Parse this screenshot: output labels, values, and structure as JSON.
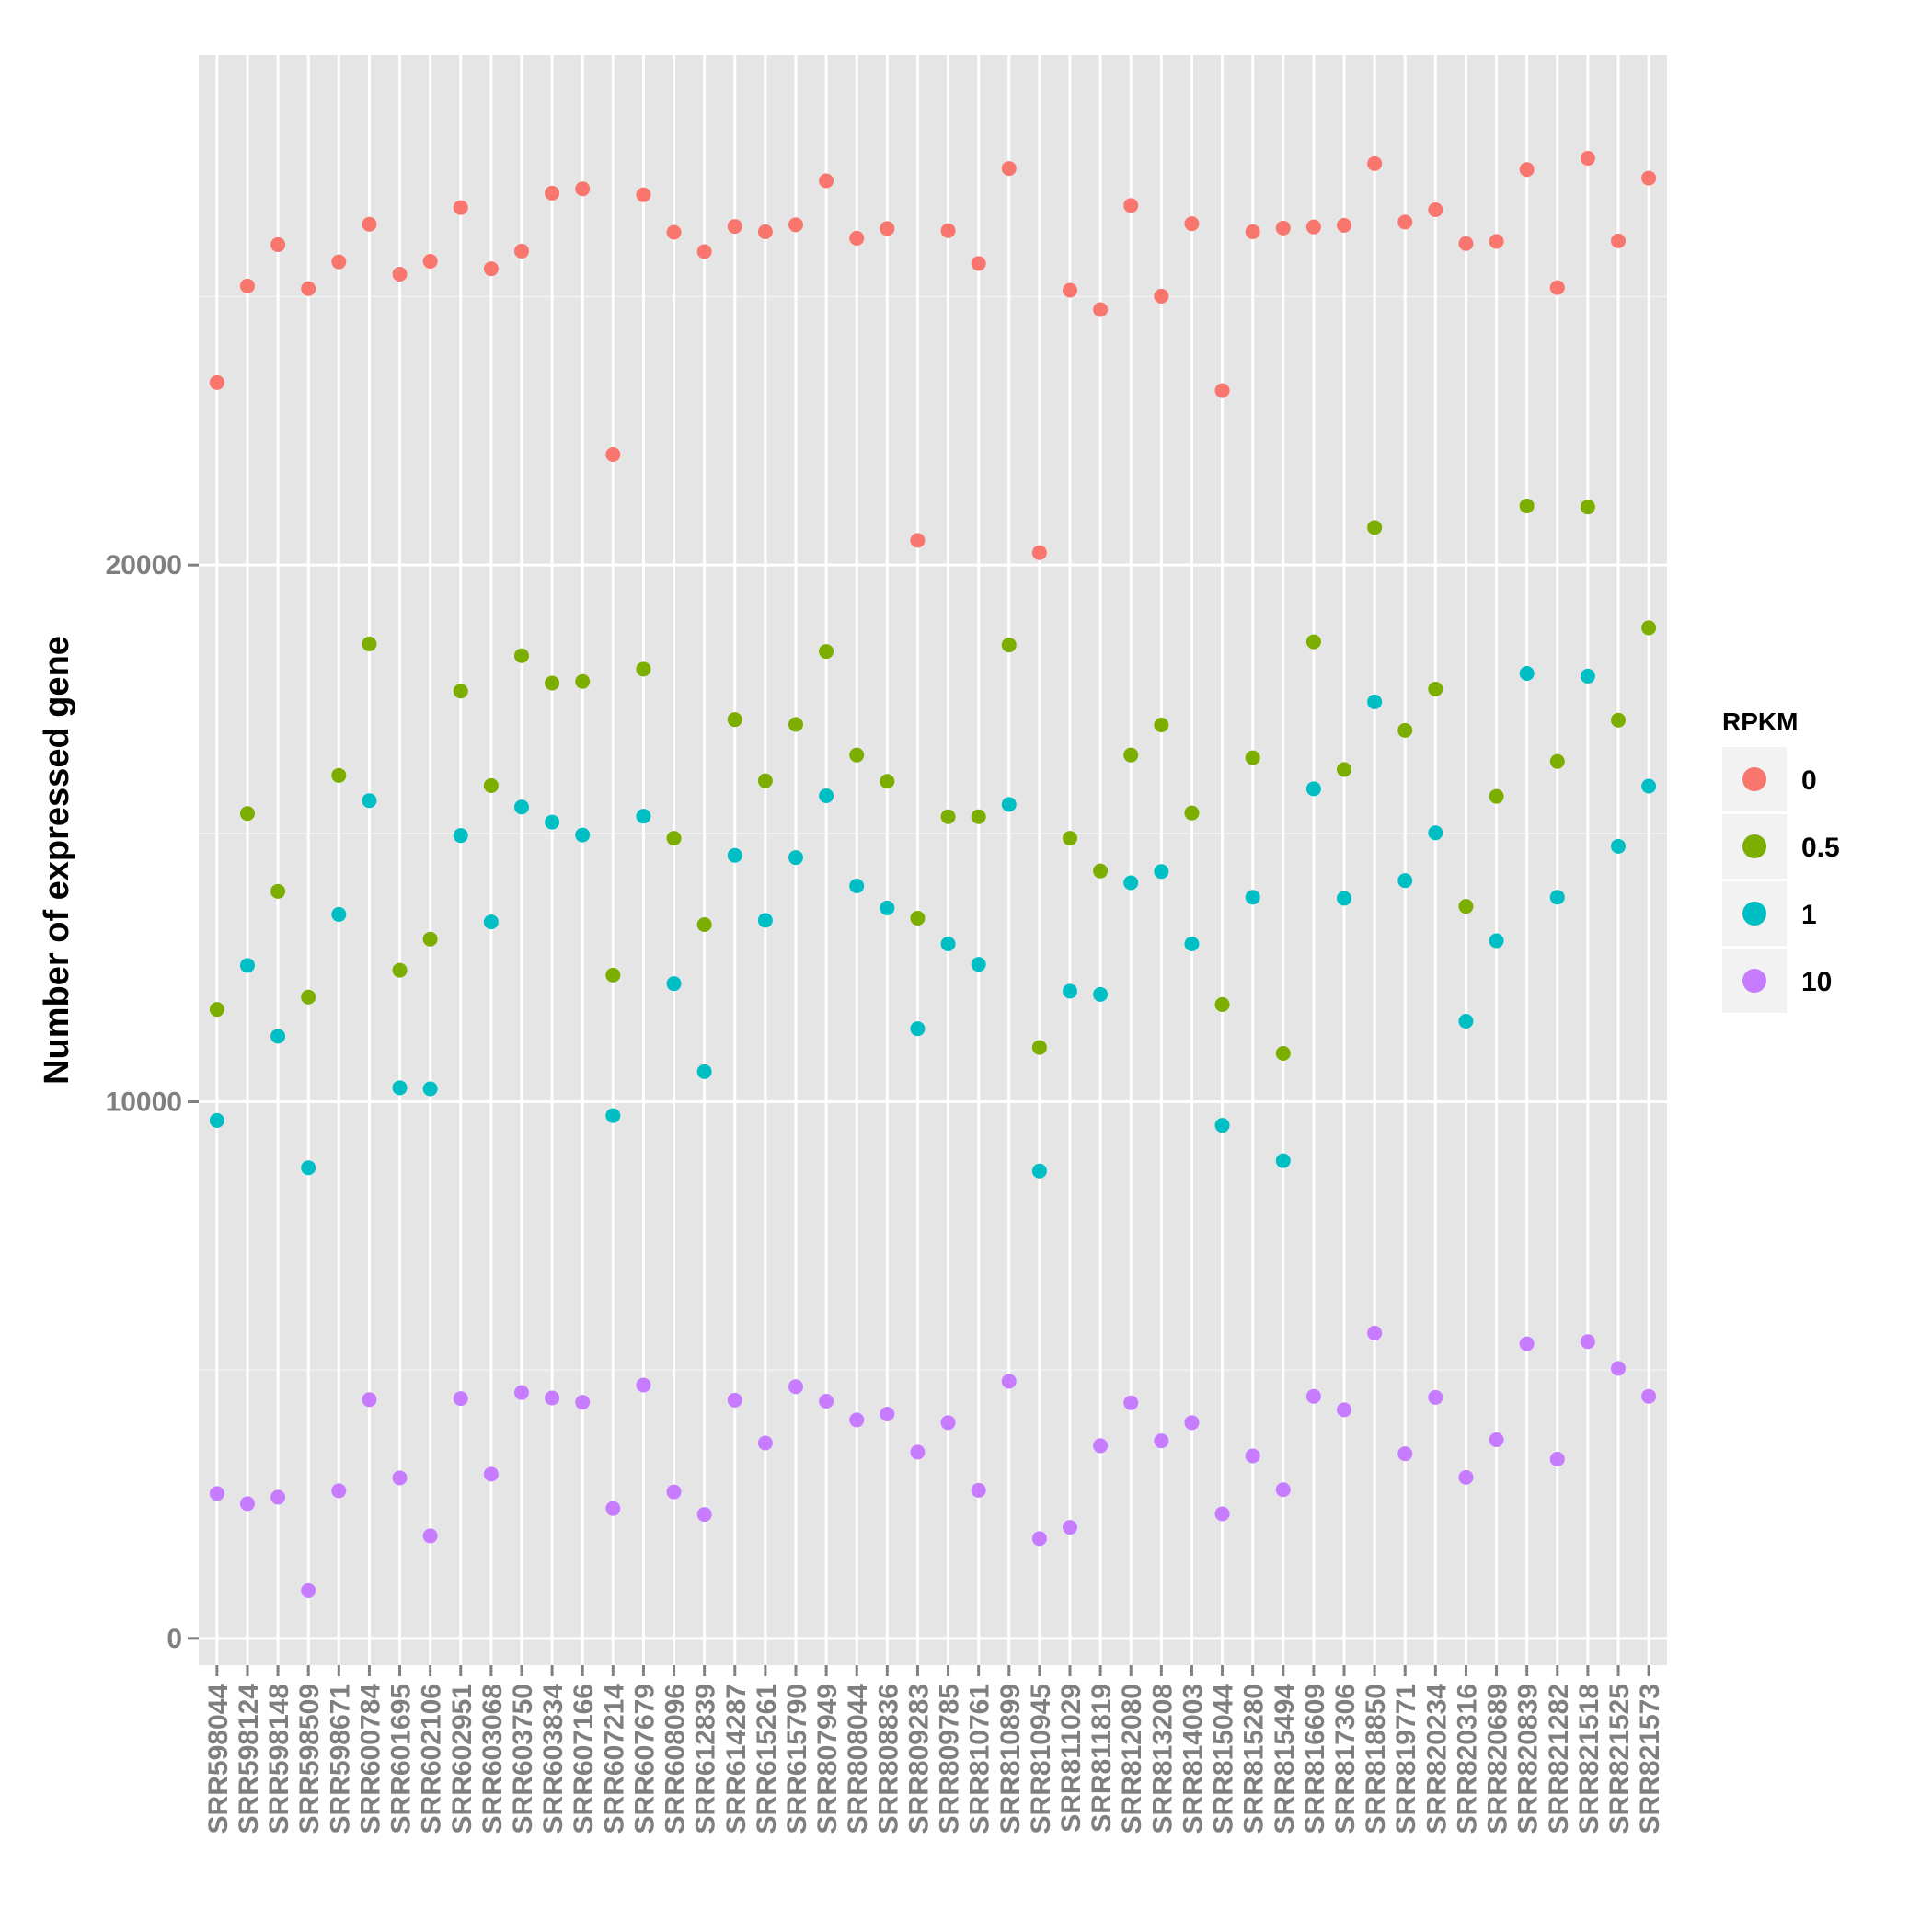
{
  "chart_data": {
    "type": "scatter",
    "ylabel": "Number of expressed gene",
    "xlabel": "",
    "ylim": [
      -500,
      29500
    ],
    "yticks": [
      0,
      10000,
      20000
    ],
    "grid": true,
    "legend_title": "RPKM",
    "legend_position": "right",
    "categories": [
      "SRR598044",
      "SRR598124",
      "SRR598148",
      "SRR598509",
      "SRR598671",
      "SRR600784",
      "SRR601695",
      "SRR602106",
      "SRR602951",
      "SRR603068",
      "SRR603750",
      "SRR603834",
      "SRR607166",
      "SRR607214",
      "SRR607679",
      "SRR608096",
      "SRR612839",
      "SRR614287",
      "SRR615261",
      "SRR615790",
      "SRR807949",
      "SRR808044",
      "SRR808836",
      "SRR809283",
      "SRR809785",
      "SRR810761",
      "SRR810899",
      "SRR810945",
      "SRR811029",
      "SRR811819",
      "SRR812080",
      "SRR813208",
      "SRR814003",
      "SRR815044",
      "SRR815280",
      "SRR815494",
      "SRR816609",
      "SRR817306",
      "SRR818850",
      "SRR819771",
      "SRR820234",
      "SRR820316",
      "SRR820689",
      "SRR820839",
      "SRR821282",
      "SRR821518",
      "SRR821525",
      "SRR821573"
    ],
    "series": [
      {
        "name": "0",
        "color": "#F8766D",
        "values": [
          23400,
          25200,
          25970,
          25150,
          25650,
          26350,
          25420,
          25660,
          26660,
          25520,
          25850,
          26930,
          27010,
          22060,
          26900,
          26200,
          25840,
          26310,
          26210,
          26340,
          27160,
          26090,
          26270,
          20460,
          26230,
          25620,
          27390,
          20230,
          25120,
          24760,
          26700,
          25010,
          26360,
          23250,
          26210,
          26280,
          26300,
          26330,
          27480,
          26390,
          26620,
          25990,
          26030,
          27370,
          25170,
          27580,
          26040,
          27210
        ]
      },
      {
        "name": "0.5",
        "color": "#7CAE00",
        "values": [
          11720,
          15370,
          13920,
          11950,
          16080,
          18530,
          12450,
          13030,
          17650,
          15890,
          18310,
          17800,
          17830,
          12360,
          18060,
          14910,
          13300,
          17120,
          15980,
          17030,
          18390,
          16460,
          15970,
          13420,
          15310,
          15310,
          18510,
          11010,
          14910,
          14300,
          16460,
          17020,
          15380,
          11810,
          16410,
          10900,
          18570,
          16190,
          20700,
          16920,
          17690,
          13640,
          15690,
          21100,
          16340,
          21080,
          17110,
          18830
        ]
      },
      {
        "name": "1",
        "color": "#00BFC4",
        "values": [
          9650,
          12540,
          11220,
          8770,
          13490,
          15610,
          10260,
          10240,
          14960,
          13350,
          15490,
          15210,
          14970,
          9740,
          15320,
          12200,
          10560,
          14590,
          13380,
          14550,
          15700,
          14020,
          13610,
          11360,
          12940,
          12560,
          15540,
          8710,
          12060,
          12000,
          14080,
          14290,
          12940,
          9560,
          13810,
          8900,
          15830,
          13790,
          17450,
          14120,
          15010,
          11500,
          13000,
          17980,
          13810,
          17930,
          14760,
          15880
        ]
      },
      {
        "name": "10",
        "color": "#C77CFF",
        "values": [
          2700,
          2510,
          2630,
          890,
          2750,
          4450,
          2990,
          1910,
          4470,
          3060,
          4580,
          4480,
          4400,
          2420,
          4720,
          2730,
          2310,
          4440,
          3640,
          4690,
          4420,
          4070,
          4180,
          3470,
          4020,
          2760,
          4790,
          1860,
          2070,
          3590,
          4390,
          3680,
          4020,
          2320,
          3400,
          2770,
          4510,
          4260,
          5690,
          3440,
          4490,
          3000,
          3700,
          5490,
          3340,
          5530,
          5030,
          4510
        ]
      }
    ]
  }
}
